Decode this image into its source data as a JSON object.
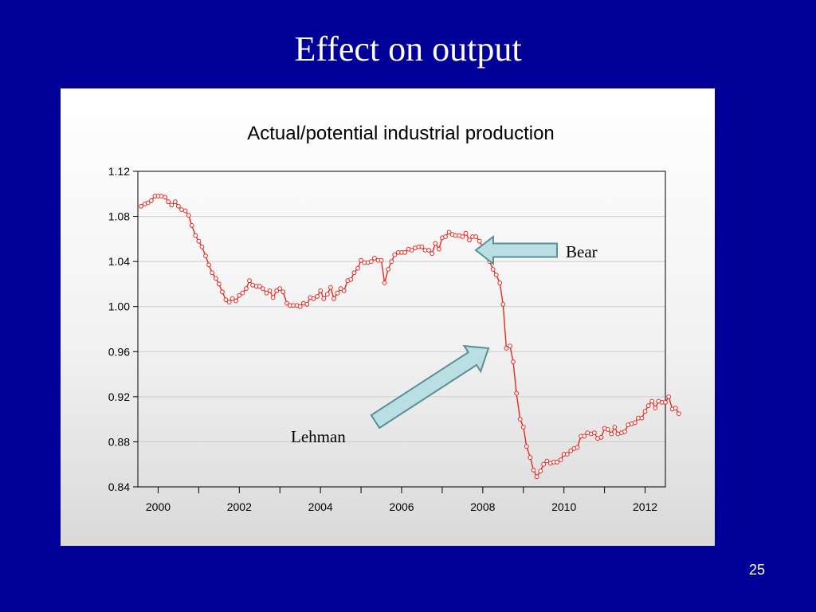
{
  "slide": {
    "title": "Effect on output",
    "page_number": "25"
  },
  "colors": {
    "background": "#000099",
    "series": "#e8281e",
    "arrow_fill": "#b9dfe2",
    "arrow_stroke": "#5b8f97"
  },
  "chart_data": {
    "type": "line",
    "title": "Actual/potential industrial production",
    "xlabel": "",
    "ylabel": "",
    "xlim": [
      1999.5,
      2012.5
    ],
    "ylim": [
      0.84,
      1.12
    ],
    "y_ticks": [
      "0.84",
      "0.88",
      "0.92",
      "0.96",
      "1.00",
      "1.04",
      "1.08",
      "1.12"
    ],
    "x_ticks": [
      "2000",
      "2002",
      "2004",
      "2006",
      "2008",
      "2010",
      "2012"
    ],
    "grid": "horizontal",
    "legend": "none",
    "marker": "circle",
    "series": [
      {
        "values": [
          [
            1999.58,
            1.089
          ],
          [
            1999.67,
            1.091
          ],
          [
            1999.75,
            1.092
          ],
          [
            1999.83,
            1.094
          ],
          [
            1999.92,
            1.098
          ],
          [
            2000.0,
            1.098
          ],
          [
            2000.08,
            1.098
          ],
          [
            2000.17,
            1.097
          ],
          [
            2000.25,
            1.093
          ],
          [
            2000.33,
            1.09
          ],
          [
            2000.42,
            1.093
          ],
          [
            2000.5,
            1.089
          ],
          [
            2000.58,
            1.086
          ],
          [
            2000.67,
            1.085
          ],
          [
            2000.75,
            1.081
          ],
          [
            2000.83,
            1.072
          ],
          [
            2000.92,
            1.063
          ],
          [
            2001.0,
            1.058
          ],
          [
            2001.08,
            1.053
          ],
          [
            2001.17,
            1.045
          ],
          [
            2001.25,
            1.037
          ],
          [
            2001.33,
            1.03
          ],
          [
            2001.42,
            1.025
          ],
          [
            2001.5,
            1.02
          ],
          [
            2001.58,
            1.013
          ],
          [
            2001.67,
            1.006
          ],
          [
            2001.75,
            1.004
          ],
          [
            2001.83,
            1.007
          ],
          [
            2001.92,
            1.005
          ],
          [
            2002.0,
            1.01
          ],
          [
            2002.08,
            1.012
          ],
          [
            2002.17,
            1.016
          ],
          [
            2002.25,
            1.023
          ],
          [
            2002.33,
            1.019
          ],
          [
            2002.42,
            1.018
          ],
          [
            2002.5,
            1.018
          ],
          [
            2002.58,
            1.016
          ],
          [
            2002.67,
            1.012
          ],
          [
            2002.75,
            1.014
          ],
          [
            2002.83,
            1.008
          ],
          [
            2002.92,
            1.014
          ],
          [
            2003.0,
            1.016
          ],
          [
            2003.08,
            1.013
          ],
          [
            2003.17,
            1.003
          ],
          [
            2003.25,
            1.001
          ],
          [
            2003.33,
            1.001
          ],
          [
            2003.42,
            1.001
          ],
          [
            2003.5,
            1.0
          ],
          [
            2003.58,
            1.003
          ],
          [
            2003.67,
            1.002
          ],
          [
            2003.75,
            1.008
          ],
          [
            2003.83,
            1.007
          ],
          [
            2003.92,
            1.009
          ],
          [
            2004.0,
            1.014
          ],
          [
            2004.08,
            1.007
          ],
          [
            2004.17,
            1.011
          ],
          [
            2004.25,
            1.017
          ],
          [
            2004.33,
            1.007
          ],
          [
            2004.42,
            1.012
          ],
          [
            2004.5,
            1.016
          ],
          [
            2004.58,
            1.014
          ],
          [
            2004.67,
            1.023
          ],
          [
            2004.75,
            1.024
          ],
          [
            2004.83,
            1.03
          ],
          [
            2004.92,
            1.034
          ],
          [
            2005.0,
            1.041
          ],
          [
            2005.08,
            1.039
          ],
          [
            2005.17,
            1.039
          ],
          [
            2005.25,
            1.04
          ],
          [
            2005.33,
            1.043
          ],
          [
            2005.42,
            1.041
          ],
          [
            2005.5,
            1.041
          ],
          [
            2005.58,
            1.021
          ],
          [
            2005.67,
            1.033
          ],
          [
            2005.75,
            1.04
          ],
          [
            2005.83,
            1.046
          ],
          [
            2005.92,
            1.048
          ],
          [
            2006.0,
            1.048
          ],
          [
            2006.08,
            1.048
          ],
          [
            2006.17,
            1.051
          ],
          [
            2006.25,
            1.05
          ],
          [
            2006.33,
            1.052
          ],
          [
            2006.42,
            1.053
          ],
          [
            2006.5,
            1.053
          ],
          [
            2006.58,
            1.05
          ],
          [
            2006.67,
            1.05
          ],
          [
            2006.75,
            1.047
          ],
          [
            2006.83,
            1.056
          ],
          [
            2006.92,
            1.051
          ],
          [
            2007.0,
            1.061
          ],
          [
            2007.08,
            1.062
          ],
          [
            2007.17,
            1.066
          ],
          [
            2007.25,
            1.064
          ],
          [
            2007.33,
            1.063
          ],
          [
            2007.42,
            1.063
          ],
          [
            2007.5,
            1.062
          ],
          [
            2007.58,
            1.065
          ],
          [
            2007.67,
            1.059
          ],
          [
            2007.75,
            1.062
          ],
          [
            2007.83,
            1.062
          ],
          [
            2007.92,
            1.058
          ],
          [
            2008.0,
            1.053
          ],
          [
            2008.08,
            1.049
          ],
          [
            2008.17,
            1.04
          ],
          [
            2008.25,
            1.033
          ],
          [
            2008.33,
            1.028
          ],
          [
            2008.42,
            1.021
          ],
          [
            2008.5,
            1.002
          ],
          [
            2008.58,
            0.963
          ],
          [
            2008.67,
            0.965
          ],
          [
            2008.75,
            0.951
          ],
          [
            2008.83,
            0.923
          ],
          [
            2008.92,
            0.9
          ],
          [
            2009.0,
            0.893
          ],
          [
            2009.08,
            0.876
          ],
          [
            2009.17,
            0.866
          ],
          [
            2009.25,
            0.855
          ],
          [
            2009.33,
            0.849
          ],
          [
            2009.42,
            0.854
          ],
          [
            2009.5,
            0.86
          ],
          [
            2009.58,
            0.863
          ],
          [
            2009.67,
            0.861
          ],
          [
            2009.75,
            0.862
          ],
          [
            2009.83,
            0.862
          ],
          [
            2009.92,
            0.864
          ],
          [
            2010.0,
            0.869
          ],
          [
            2010.08,
            0.869
          ],
          [
            2010.17,
            0.872
          ],
          [
            2010.25,
            0.874
          ],
          [
            2010.33,
            0.875
          ],
          [
            2010.42,
            0.885
          ],
          [
            2010.5,
            0.885
          ],
          [
            2010.58,
            0.888
          ],
          [
            2010.67,
            0.887
          ],
          [
            2010.75,
            0.888
          ],
          [
            2010.83,
            0.883
          ],
          [
            2010.92,
            0.884
          ],
          [
            2011.0,
            0.892
          ],
          [
            2011.08,
            0.891
          ],
          [
            2011.17,
            0.887
          ],
          [
            2011.25,
            0.893
          ],
          [
            2011.33,
            0.887
          ],
          [
            2011.42,
            0.888
          ],
          [
            2011.5,
            0.889
          ],
          [
            2011.58,
            0.895
          ],
          [
            2011.67,
            0.896
          ],
          [
            2011.75,
            0.897
          ],
          [
            2011.83,
            0.901
          ],
          [
            2011.92,
            0.901
          ],
          [
            2012.0,
            0.907
          ],
          [
            2012.08,
            0.912
          ],
          [
            2012.17,
            0.916
          ],
          [
            2012.25,
            0.91
          ],
          [
            2012.33,
            0.916
          ],
          [
            2012.42,
            0.915
          ],
          [
            2012.5,
            0.915
          ],
          [
            2012.58,
            0.92
          ],
          [
            2012.67,
            0.909
          ],
          [
            2012.75,
            0.91
          ],
          [
            2012.83,
            0.905
          ]
        ]
      }
    ],
    "annotations": [
      {
        "text": "Bear",
        "points_to": [
          2008.25,
          1.049
        ]
      },
      {
        "text": "Lehman",
        "points_to": [
          2008.58,
          0.962
        ]
      }
    ]
  }
}
